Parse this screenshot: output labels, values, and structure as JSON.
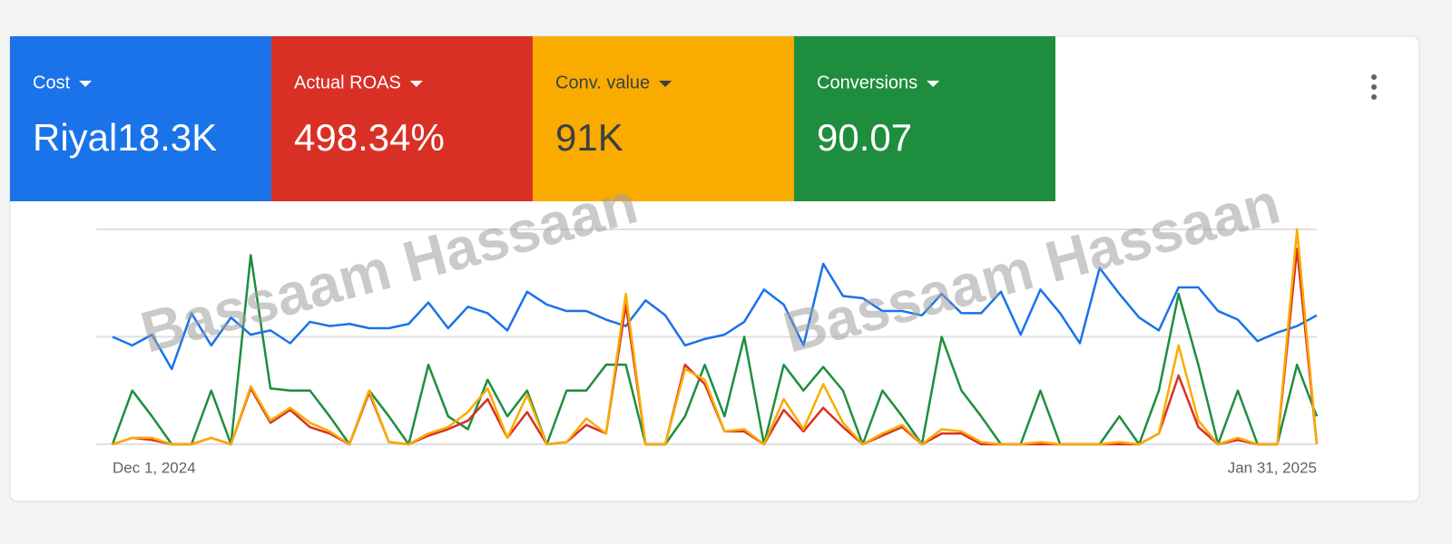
{
  "watermark": "Bassaam Hassaan",
  "chart_data": {
    "type": "line",
    "categories": [
      "Dec 1, 2024",
      null,
      null,
      null,
      null,
      null,
      null,
      null,
      null,
      null,
      null,
      null,
      null,
      null,
      null,
      null,
      null,
      null,
      null,
      null,
      null,
      null,
      null,
      null,
      null,
      null,
      null,
      null,
      null,
      null,
      null,
      null,
      null,
      null,
      null,
      null,
      null,
      null,
      null,
      null,
      null,
      null,
      null,
      null,
      null,
      null,
      null,
      null,
      null,
      null,
      null,
      null,
      null,
      null,
      null,
      null,
      null,
      null,
      null,
      null,
      null,
      "Jan 31, 2025"
    ],
    "ylim": [
      0,
      100
    ],
    "gridlines": [
      0,
      50,
      100
    ],
    "series": [
      {
        "name": "Cost",
        "value_label": "Riyal18.3K",
        "color": "#1a73e8",
        "text_color": "#ffffff",
        "values": [
          50,
          46,
          51,
          35,
          61,
          46,
          59,
          51,
          53,
          47,
          57,
          55,
          56,
          54,
          54,
          56,
          66,
          54,
          64,
          61,
          53,
          71,
          65,
          62,
          62,
          58,
          55,
          67,
          60,
          46,
          49,
          51,
          57,
          72,
          65,
          46,
          84,
          69,
          68,
          62,
          62,
          60,
          70,
          61,
          61,
          71,
          51,
          72,
          61,
          47,
          82,
          70,
          59,
          53,
          73,
          73,
          62,
          58,
          48,
          52,
          55,
          60
        ]
      },
      {
        "name": "Actual ROAS",
        "value_label": "498.34%",
        "color": "#d93025",
        "text_color": "#ffffff",
        "values": [
          0,
          3,
          2,
          0,
          0,
          3,
          0,
          26,
          10,
          16,
          8,
          5,
          0,
          24,
          1,
          0,
          4,
          7,
          11,
          21,
          3,
          15,
          0,
          1,
          9,
          5,
          65,
          0,
          0,
          37,
          28,
          6,
          6,
          0,
          16,
          6,
          17,
          8,
          0,
          4,
          8,
          0,
          5,
          5,
          0,
          0,
          0,
          0,
          0,
          0,
          0,
          0,
          0,
          5,
          32,
          8,
          0,
          2,
          0,
          0,
          91,
          0
        ]
      },
      {
        "name": "Conv. value",
        "value_label": "91K",
        "color": "#f9ab00",
        "text_color": "#3c4043",
        "values": [
          0,
          3,
          3,
          0,
          0,
          3,
          0,
          27,
          11,
          17,
          10,
          6,
          0,
          25,
          1,
          0,
          5,
          8,
          15,
          26,
          3,
          23,
          0,
          1,
          12,
          5,
          70,
          0,
          0,
          35,
          30,
          6,
          7,
          0,
          21,
          7,
          28,
          10,
          0,
          5,
          9,
          0,
          7,
          6,
          1,
          0,
          0,
          1,
          0,
          0,
          0,
          1,
          0,
          5,
          46,
          11,
          0,
          3,
          0,
          0,
          100,
          0
        ]
      },
      {
        "name": "Conversions",
        "value_label": "90.07",
        "color": "#1e8e3e",
        "text_color": "#ffffff",
        "values": [
          0,
          25,
          13,
          0,
          0,
          25,
          0,
          88,
          26,
          25,
          25,
          13,
          0,
          25,
          13,
          0,
          37,
          13,
          7,
          30,
          13,
          25,
          0,
          25,
          25,
          37,
          37,
          0,
          0,
          13,
          37,
          13,
          50,
          0,
          37,
          25,
          36,
          25,
          0,
          25,
          13,
          0,
          50,
          25,
          13,
          0,
          0,
          25,
          0,
          0,
          0,
          13,
          0,
          25,
          70,
          37,
          0,
          25,
          0,
          0,
          37,
          13
        ]
      }
    ]
  }
}
